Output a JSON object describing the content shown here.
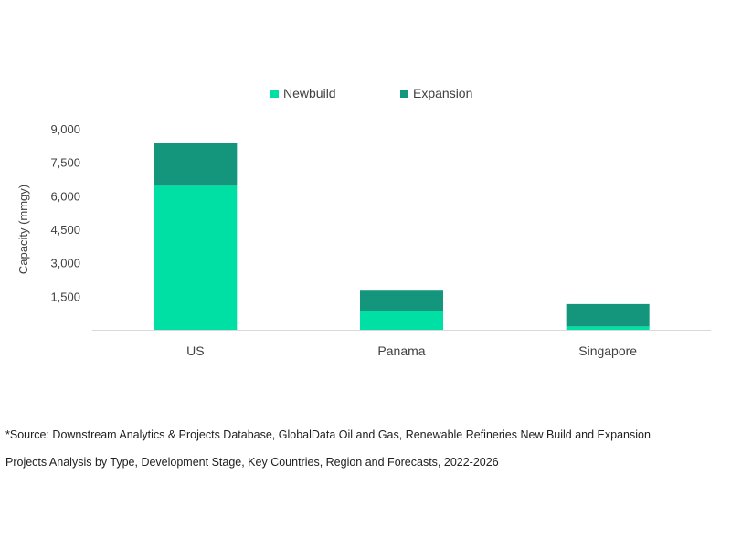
{
  "chart_data": {
    "type": "bar",
    "stacked": true,
    "categories": [
      "US",
      "Panama",
      "Singapore"
    ],
    "series": [
      {
        "name": "Newbuild",
        "values": [
          6450,
          850,
          150
        ],
        "color": "#00e0a4"
      },
      {
        "name": "Expansion",
        "values": [
          1900,
          900,
          1000
        ],
        "color": "#14967c"
      }
    ],
    "ylabel": "Capacity (mmgy)",
    "ylim": [
      0,
      9000
    ],
    "yticks": [
      {
        "value": 1500,
        "label": "1,500"
      },
      {
        "value": 3000,
        "label": "3,000"
      },
      {
        "value": 4500,
        "label": "4,500"
      },
      {
        "value": 6000,
        "label": "6,000"
      },
      {
        "value": 7500,
        "label": "7,500"
      },
      {
        "value": 9000,
        "label": "9,000"
      }
    ],
    "grid": false,
    "legend_position": "top-center"
  },
  "source": {
    "line1": "*Source: Downstream Analytics & Projects Database, GlobalData Oil and Gas, Renewable Refineries New Build and Expansion",
    "line2": "Projects Analysis by Type, Development Stage, Key Countries, Region and Forecasts, 2022-2026"
  }
}
